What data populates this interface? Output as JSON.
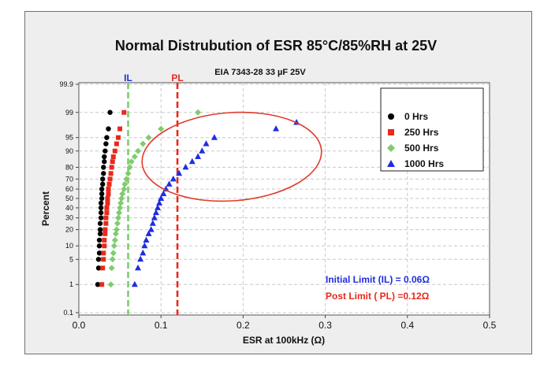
{
  "chart_data": {
    "type": "scatter",
    "title": "Normal Distrubution of ESR 85°C/85%RH at 25V",
    "subtitle": "EIA 7343-28 33 µF 25V",
    "xlabel": "ESR at 100kHz (Ω)",
    "ylabel": "Percent",
    "xlim": [
      0.0,
      0.5
    ],
    "x_ticks": [
      0.0,
      0.1,
      0.2,
      0.3,
      0.4,
      0.5
    ],
    "x_tick_labels": [
      "0.0",
      "0.1",
      "0.2",
      "0.3",
      "0.4",
      "0.5"
    ],
    "y_scale": "normal-probability",
    "ylim": [
      0.1,
      99.9
    ],
    "y_ticks": [
      0.1,
      1,
      5,
      10,
      20,
      30,
      40,
      50,
      60,
      70,
      80,
      90,
      95,
      99,
      99.9
    ],
    "y_tick_labels": [
      "0.1",
      "1",
      "5",
      "10",
      "20",
      "30",
      "40",
      "50",
      "60",
      "70",
      "80",
      "90",
      "95",
      "99",
      "99.9"
    ],
    "grid": true,
    "legend_position": "top-right",
    "series": [
      {
        "name": "0 Hrs",
        "marker": "circle",
        "color": "#000000",
        "x": [
          0.023,
          0.024,
          0.024,
          0.025,
          0.025,
          0.025,
          0.026,
          0.026,
          0.026,
          0.027,
          0.027,
          0.027,
          0.027,
          0.028,
          0.028,
          0.028,
          0.029,
          0.029,
          0.03,
          0.03,
          0.031,
          0.031,
          0.032,
          0.033,
          0.034,
          0.036,
          0.038
        ],
        "y": [
          1,
          3,
          5,
          7,
          10,
          13,
          17,
          20,
          25,
          30,
          35,
          40,
          45,
          50,
          55,
          60,
          65,
          70,
          75,
          80,
          84,
          87,
          90,
          93,
          95,
          97,
          99
        ]
      },
      {
        "name": "250 Hrs",
        "marker": "square",
        "color": "#e8291c",
        "x": [
          0.028,
          0.029,
          0.03,
          0.03,
          0.031,
          0.031,
          0.032,
          0.032,
          0.033,
          0.033,
          0.034,
          0.034,
          0.035,
          0.035,
          0.036,
          0.036,
          0.037,
          0.038,
          0.039,
          0.04,
          0.041,
          0.042,
          0.044,
          0.046,
          0.048,
          0.05,
          0.055
        ],
        "y": [
          1,
          3,
          5,
          7,
          10,
          13,
          17,
          20,
          25,
          30,
          35,
          40,
          45,
          50,
          55,
          60,
          65,
          70,
          75,
          80,
          84,
          87,
          90,
          93,
          95,
          97,
          99
        ]
      },
      {
        "name": "500 Hrs",
        "marker": "diamond",
        "color": "#7fcc6e",
        "x": [
          0.039,
          0.04,
          0.041,
          0.042,
          0.043,
          0.044,
          0.045,
          0.046,
          0.047,
          0.048,
          0.049,
          0.05,
          0.051,
          0.052,
          0.053,
          0.055,
          0.056,
          0.058,
          0.06,
          0.062,
          0.064,
          0.068,
          0.072,
          0.078,
          0.085,
          0.1,
          0.145
        ],
        "y": [
          1,
          3,
          5,
          7,
          10,
          13,
          17,
          20,
          25,
          30,
          35,
          40,
          45,
          50,
          55,
          60,
          65,
          70,
          75,
          80,
          84,
          87,
          90,
          93,
          95,
          97,
          99
        ]
      },
      {
        "name": "1000 Hrs",
        "marker": "triangle",
        "color": "#1f2de0",
        "x": [
          0.068,
          0.072,
          0.075,
          0.078,
          0.08,
          0.082,
          0.085,
          0.088,
          0.09,
          0.092,
          0.094,
          0.096,
          0.098,
          0.1,
          0.103,
          0.106,
          0.11,
          0.115,
          0.122,
          0.13,
          0.138,
          0.145,
          0.15,
          0.155,
          0.165,
          0.24,
          0.265
        ],
        "y": [
          1,
          3,
          5,
          7,
          10,
          13,
          17,
          20,
          25,
          30,
          35,
          40,
          45,
          50,
          55,
          60,
          65,
          70,
          75,
          80,
          84,
          87,
          90,
          93,
          95,
          97,
          98
        ]
      }
    ],
    "reference_lines": [
      {
        "label": "IL",
        "x": 0.06,
        "color": "#7fcc6e",
        "label_color": "#1f2de0"
      },
      {
        "label": "PL",
        "x": 0.12,
        "color": "#e8291c",
        "label_color": "#e8291c"
      }
    ],
    "annotations": [
      {
        "text": "Initial Limit (IL) = 0.06Ω",
        "color": "#1f2de0"
      },
      {
        "text": "Post Limit ( PL) =0.12Ω",
        "color": "#e8291c"
      }
    ],
    "highlight": {
      "shape": "ellipse",
      "color": "#e03a2a"
    }
  }
}
